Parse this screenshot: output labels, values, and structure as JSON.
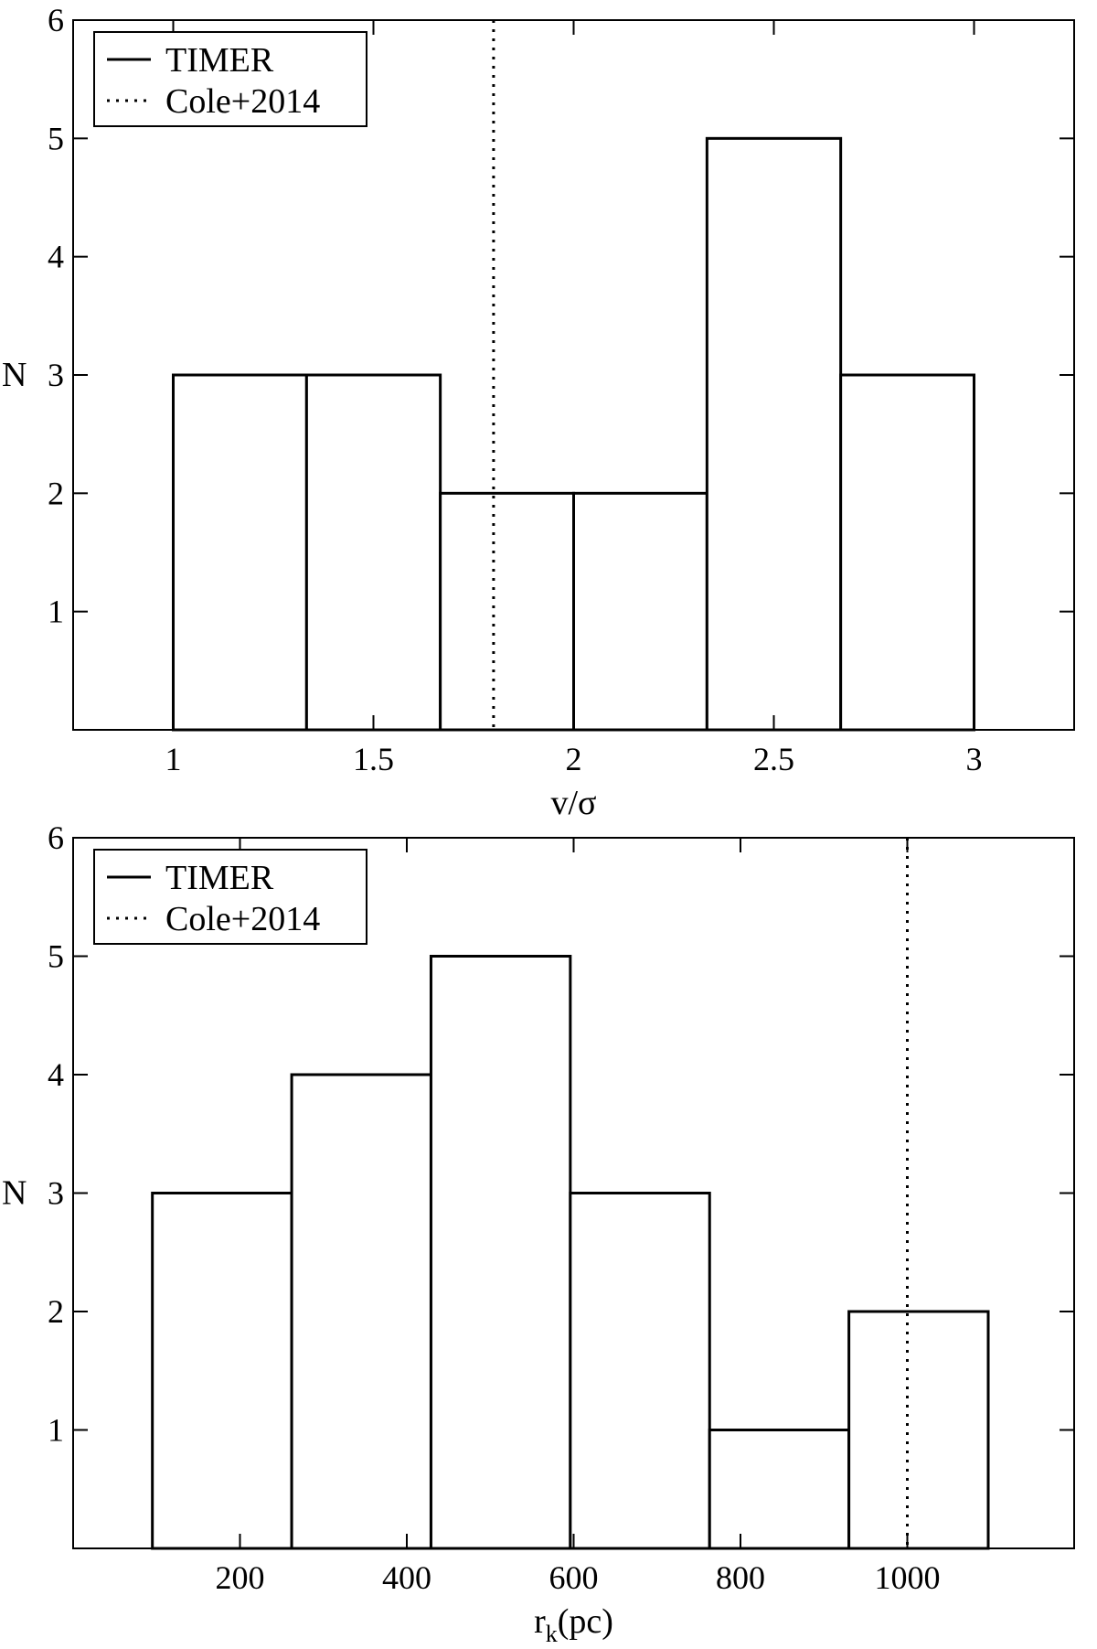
{
  "chart_data": [
    {
      "type": "bar",
      "xlabel": "v/σ",
      "ylabel": "N",
      "xlim": [
        0.75,
        3.25
      ],
      "ylim": [
        0,
        6
      ],
      "x_ticks": [
        1,
        1.5,
        2,
        2.5,
        3
      ],
      "x_tick_labels": [
        "1",
        "1.5",
        "2",
        "2.5",
        "3"
      ],
      "y_ticks": [
        1,
        2,
        3,
        4,
        5,
        6
      ],
      "y_tick_labels": [
        "1",
        "2",
        "3",
        "4",
        "5",
        "6"
      ],
      "bins": [
        {
          "x0": 1.0,
          "x1": 1.333,
          "value": 3
        },
        {
          "x0": 1.333,
          "x1": 1.667,
          "value": 3
        },
        {
          "x0": 1.667,
          "x1": 2.0,
          "value": 2
        },
        {
          "x0": 2.0,
          "x1": 2.333,
          "value": 2
        },
        {
          "x0": 2.333,
          "x1": 2.667,
          "value": 5
        },
        {
          "x0": 2.667,
          "x1": 3.0,
          "value": 3
        }
      ],
      "reference_line": {
        "x": 1.8
      },
      "legend": {
        "position": "top-left",
        "entries": [
          {
            "label": "TIMER",
            "style": "solid"
          },
          {
            "label": "Cole+2014",
            "style": "dotted"
          }
        ]
      },
      "grid": false
    },
    {
      "type": "bar",
      "xlabel_main": "r",
      "xlabel_sub": "k",
      "xlabel_unit": "(pc)",
      "ylabel": "N",
      "xlim": [
        0,
        1200
      ],
      "ylim": [
        0,
        6
      ],
      "x_ticks": [
        200,
        400,
        600,
        800,
        1000
      ],
      "x_tick_labels": [
        "200",
        "400",
        "600",
        "800",
        "1000"
      ],
      "y_ticks": [
        1,
        2,
        3,
        4,
        5,
        6
      ],
      "y_tick_labels": [
        "1",
        "2",
        "3",
        "4",
        "5",
        "6"
      ],
      "bins": [
        {
          "x0": 95,
          "x1": 262,
          "value": 3
        },
        {
          "x0": 262,
          "x1": 429,
          "value": 4
        },
        {
          "x0": 429,
          "x1": 596,
          "value": 5
        },
        {
          "x0": 596,
          "x1": 763,
          "value": 3
        },
        {
          "x0": 763,
          "x1": 930,
          "value": 1
        },
        {
          "x0": 930,
          "x1": 1097,
          "value": 2
        }
      ],
      "reference_line": {
        "x": 1000
      },
      "legend": {
        "position": "top-left",
        "entries": [
          {
            "label": "TIMER",
            "style": "solid"
          },
          {
            "label": "Cole+2014",
            "style": "dotted"
          }
        ]
      },
      "grid": false
    }
  ]
}
